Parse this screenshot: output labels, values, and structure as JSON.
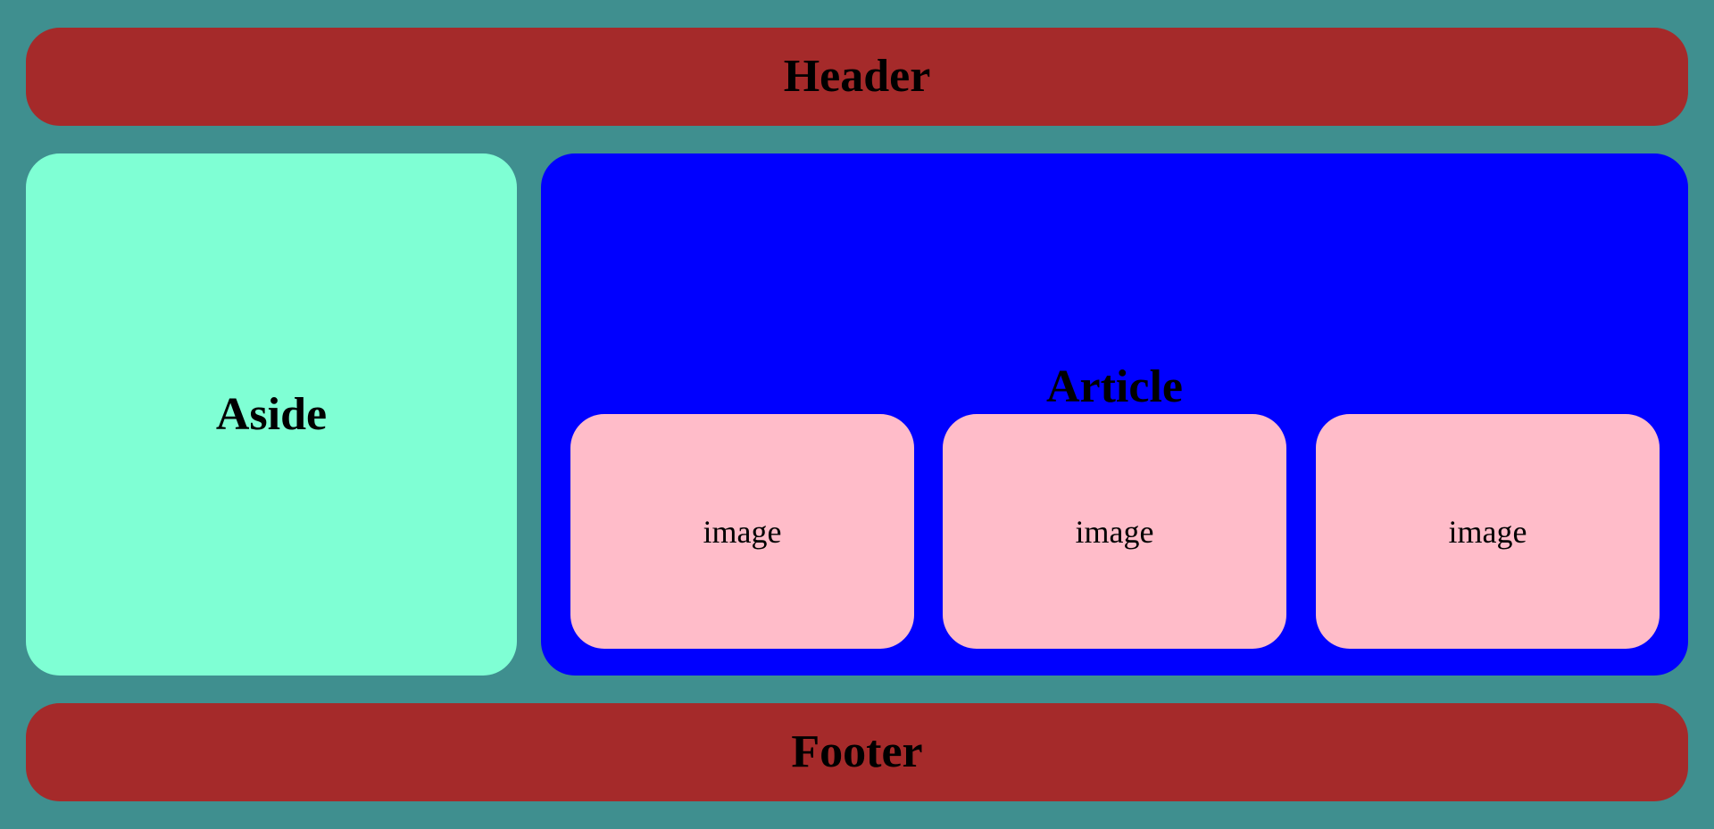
{
  "header": {
    "label": "Header"
  },
  "aside": {
    "label": "Aside"
  },
  "article": {
    "title": "Article",
    "images": [
      {
        "label": "image"
      },
      {
        "label": "image"
      },
      {
        "label": "image"
      }
    ]
  },
  "footer": {
    "label": "Footer"
  },
  "colors": {
    "page_background": "#3f8f8f",
    "header_footer": "#a52a2a",
    "aside": "#7fffd4",
    "article": "#0000ff",
    "image_card": "#ffbcc9"
  }
}
